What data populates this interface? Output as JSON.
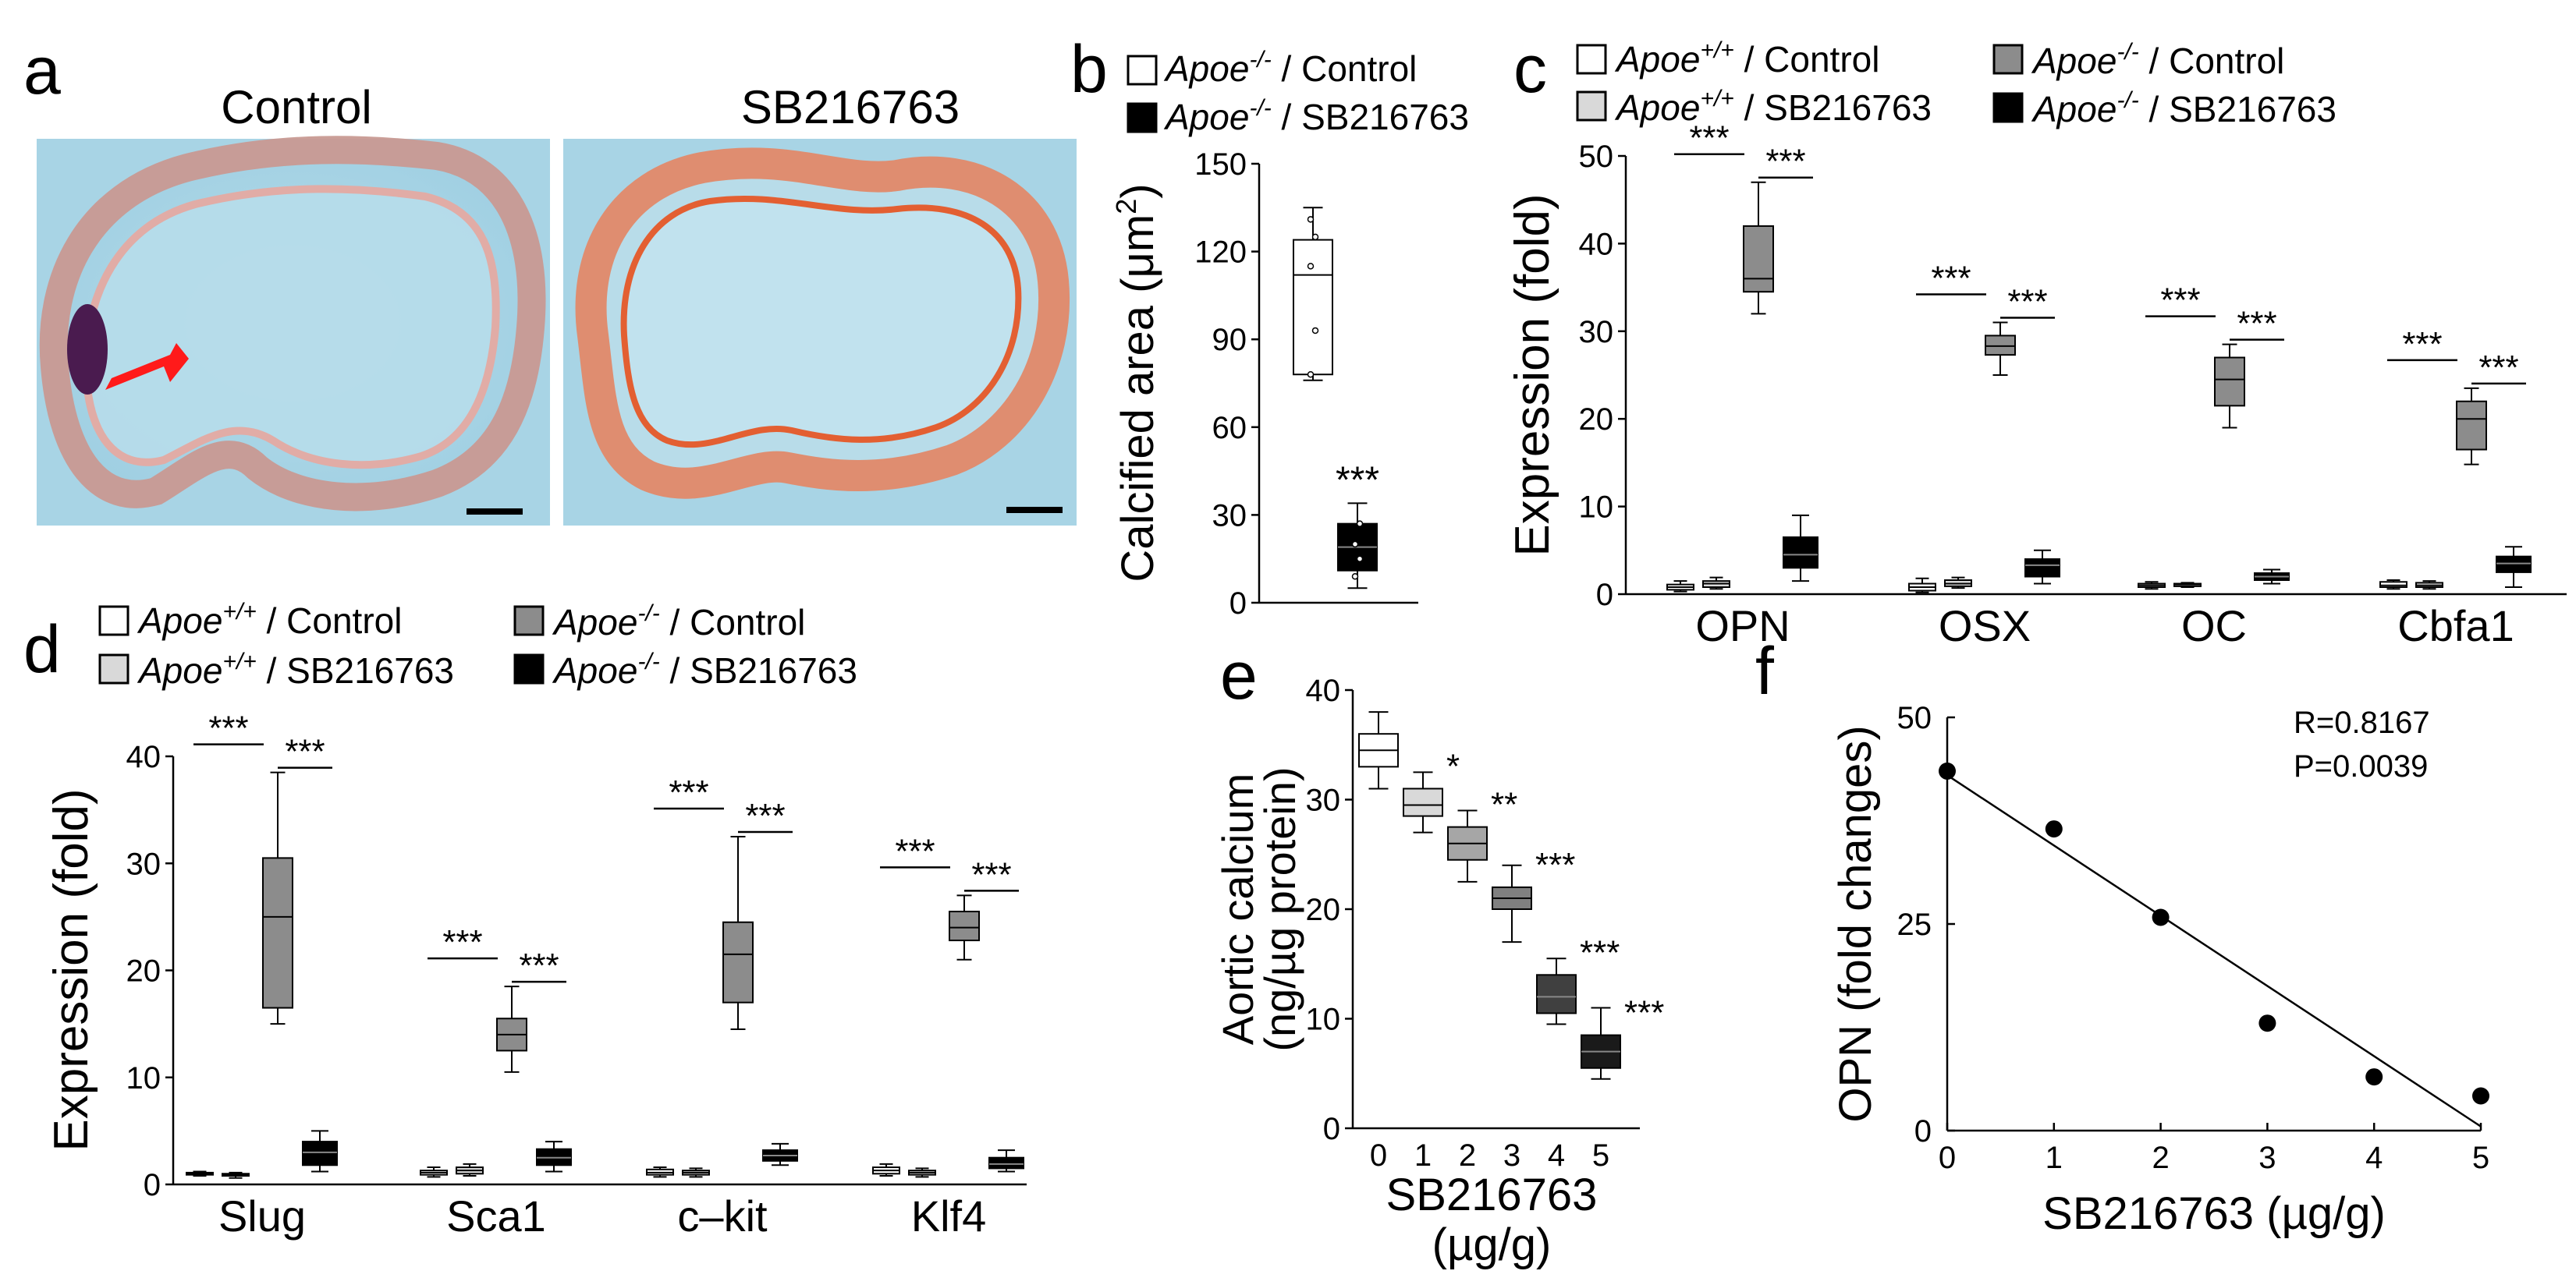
{
  "colors": {
    "white_box": "#ffffff",
    "light_box": "#d9d9d9",
    "gray_box": "#8c8c8c",
    "black_box": "#000000",
    "arrow": "#ff1a1a",
    "tissue_bg": "#9fd0e3"
  },
  "panel_a": {
    "letter": "a",
    "left_title": "Control",
    "right_title": "SB216763"
  },
  "legend_two": {
    "items": [
      {
        "gene": "Apoe",
        "sup": "-/-",
        "rest": " / Control",
        "color": "#ffffff"
      },
      {
        "gene": "Apoe",
        "sup": "-/-",
        "rest": " / SB216763",
        "color": "#000000"
      }
    ]
  },
  "legend_four": {
    "items": [
      {
        "gene": "Apoe",
        "sup": "+/+",
        "rest": " / Control",
        "color": "#ffffff"
      },
      {
        "gene": "Apoe",
        "sup": "+/+",
        "rest": " / SB216763",
        "color": "#d9d9d9"
      },
      {
        "gene": "Apoe",
        "sup": "-/-",
        "rest": " / Control",
        "color": "#8c8c8c"
      },
      {
        "gene": "Apoe",
        "sup": "-/-",
        "rest": " / SB216763",
        "color": "#000000"
      }
    ]
  },
  "chart_data": [
    {
      "panel": "b",
      "type": "box",
      "ylabel_main": "Calcified area (μm",
      "ylabel_sup": "2",
      "ylabel_end": ")",
      "ylim": [
        0,
        150
      ],
      "yticks": [
        0,
        30,
        60,
        90,
        120,
        150
      ],
      "series": [
        {
          "name": "Apoe-/- / Control",
          "color": "#ffffff",
          "min": 76,
          "q1": 78,
          "median": 112,
          "q3": 124,
          "max": 135,
          "points": [
            78,
            93,
            115,
            125,
            131
          ],
          "sig": ""
        },
        {
          "name": "Apoe-/- / SB216763",
          "color": "#000000",
          "min": 5,
          "q1": 11,
          "median": 19,
          "q3": 27,
          "max": 34,
          "points": [
            9,
            15,
            20,
            27
          ],
          "sig": "***"
        }
      ]
    },
    {
      "panel": "c",
      "type": "box",
      "ylabel": "Expression (fold)",
      "ylim": [
        0,
        50
      ],
      "yticks": [
        0,
        10,
        20,
        30,
        40,
        50
      ],
      "categories": [
        "OPN",
        "OSX",
        "OC",
        "Cbfa1"
      ],
      "series_names": [
        "Apoe+/+ / Control",
        "Apoe+/+ / SB216763",
        "Apoe-/- / Control",
        "Apoe-/- / SB216763"
      ],
      "boxes": [
        [
          {
            "min": 0.3,
            "q1": 0.5,
            "median": 0.8,
            "q3": 1.1,
            "max": 1.5
          },
          {
            "min": 0.6,
            "q1": 0.8,
            "median": 1.2,
            "q3": 1.5,
            "max": 1.9
          },
          {
            "min": 32,
            "q1": 34.5,
            "median": 36,
            "q3": 42,
            "max": 47
          },
          {
            "min": 1.5,
            "q1": 3,
            "median": 4.5,
            "q3": 6.5,
            "max": 9
          }
        ],
        [
          {
            "min": 0.2,
            "q1": 0.4,
            "median": 0.8,
            "q3": 1.2,
            "max": 1.8
          },
          {
            "min": 0.7,
            "q1": 0.9,
            "median": 1.2,
            "q3": 1.6,
            "max": 1.9
          },
          {
            "min": 25,
            "q1": 27.3,
            "median": 28.3,
            "q3": 29.5,
            "max": 31
          },
          {
            "min": 1.2,
            "q1": 2,
            "median": 3.3,
            "q3": 4,
            "max": 5
          }
        ],
        [
          {
            "min": 0.6,
            "q1": 0.8,
            "median": 1,
            "q3": 1.2,
            "max": 1.4
          },
          {
            "min": 0.8,
            "q1": 0.9,
            "median": 1.1,
            "q3": 1.2,
            "max": 1.3
          },
          {
            "min": 19,
            "q1": 21.5,
            "median": 24.5,
            "q3": 27,
            "max": 28.5
          },
          {
            "min": 1.2,
            "q1": 1.6,
            "median": 2,
            "q3": 2.4,
            "max": 2.8
          }
        ],
        [
          {
            "min": 0.6,
            "q1": 0.8,
            "median": 1,
            "q3": 1.4,
            "max": 1.6
          },
          {
            "min": 0.6,
            "q1": 0.8,
            "median": 1,
            "q3": 1.3,
            "max": 1.5
          },
          {
            "min": 14.8,
            "q1": 16.5,
            "median": 20,
            "q3": 22,
            "max": 23.5
          },
          {
            "min": 0.8,
            "q1": 2.5,
            "median": 3.5,
            "q3": 4.3,
            "max": 5.4
          }
        ]
      ],
      "significance": [
        {
          "category": "OPN",
          "left": "***",
          "right": "***"
        },
        {
          "category": "OSX",
          "left": "***",
          "right": "***"
        },
        {
          "category": "OC",
          "left": "***",
          "right": "***"
        },
        {
          "category": "Cbfa1",
          "left": "***",
          "right": "***"
        }
      ]
    },
    {
      "panel": "d",
      "type": "box",
      "ylabel": "Expression (fold)",
      "ylim": [
        0,
        40
      ],
      "yticks": [
        0,
        10,
        20,
        30,
        40
      ],
      "categories": [
        "Slug",
        "Sca1",
        "c–kit",
        "Klf4"
      ],
      "series_names": [
        "Apoe+/+ / Control",
        "Apoe+/+ / SB216763",
        "Apoe-/- / Control",
        "Apoe-/- / SB216763"
      ],
      "boxes": [
        [
          {
            "min": 0.8,
            "q1": 0.9,
            "median": 1,
            "q3": 1.1,
            "max": 1.2
          },
          {
            "min": 0.6,
            "q1": 0.8,
            "median": 0.9,
            "q3": 1,
            "max": 1.1
          },
          {
            "min": 15,
            "q1": 16.5,
            "median": 25,
            "q3": 30.5,
            "max": 38.5
          },
          {
            "min": 1.2,
            "q1": 1.8,
            "median": 3,
            "q3": 4,
            "max": 5
          }
        ],
        [
          {
            "min": 0.7,
            "q1": 0.9,
            "median": 1.1,
            "q3": 1.3,
            "max": 1.6
          },
          {
            "min": 0.8,
            "q1": 1,
            "median": 1.3,
            "q3": 1.6,
            "max": 1.9
          },
          {
            "min": 10.5,
            "q1": 12.5,
            "median": 14,
            "q3": 15.5,
            "max": 18.5
          },
          {
            "min": 1.2,
            "q1": 1.8,
            "median": 2.5,
            "q3": 3.3,
            "max": 4
          }
        ],
        [
          {
            "min": 0.7,
            "q1": 0.9,
            "median": 1.1,
            "q3": 1.4,
            "max": 1.6
          },
          {
            "min": 0.7,
            "q1": 0.9,
            "median": 1.1,
            "q3": 1.3,
            "max": 1.5
          },
          {
            "min": 14.5,
            "q1": 17,
            "median": 21.5,
            "q3": 24.5,
            "max": 32.5
          },
          {
            "min": 1.8,
            "q1": 2.2,
            "median": 2.7,
            "q3": 3.2,
            "max": 3.8
          }
        ],
        [
          {
            "min": 0.8,
            "q1": 1,
            "median": 1.3,
            "q3": 1.6,
            "max": 1.9
          },
          {
            "min": 0.7,
            "q1": 0.9,
            "median": 1.1,
            "q3": 1.3,
            "max": 1.5
          },
          {
            "min": 21,
            "q1": 22.8,
            "median": 24,
            "q3": 25.5,
            "max": 27
          },
          {
            "min": 1.2,
            "q1": 1.5,
            "median": 1.9,
            "q3": 2.5,
            "max": 3.2
          }
        ]
      ],
      "significance": [
        {
          "category": "Slug",
          "left": "***",
          "right": "***"
        },
        {
          "category": "Sca1",
          "left": "***",
          "right": "***"
        },
        {
          "category": "c–kit",
          "left": "***",
          "right": "***"
        },
        {
          "category": "Klf4",
          "left": "***",
          "right": "***"
        }
      ]
    },
    {
      "panel": "e",
      "type": "box",
      "ylabel_line1": "Aortic calcium",
      "ylabel_line2": "(ng/µg protein)",
      "xlabel_line1": "SB216763",
      "xlabel_line2": "(µg/g)",
      "ylim": [
        0,
        40
      ],
      "yticks": [
        0,
        10,
        20,
        30,
        40
      ],
      "categories": [
        "0",
        "1",
        "2",
        "3",
        "4",
        "5"
      ],
      "boxes": [
        {
          "color": "#ffffff",
          "min": 31,
          "q1": 33,
          "median": 34.5,
          "q3": 36,
          "max": 38,
          "sig": ""
        },
        {
          "color": "#d9d9d9",
          "min": 27,
          "q1": 28.5,
          "median": 29.5,
          "q3": 31,
          "max": 32.5,
          "sig": "*"
        },
        {
          "color": "#a6a6a6",
          "min": 22.5,
          "q1": 24.5,
          "median": 26,
          "q3": 27.5,
          "max": 29,
          "sig": "**"
        },
        {
          "color": "#808080",
          "min": 17,
          "q1": 20,
          "median": 21,
          "q3": 22,
          "max": 24,
          "sig": "***"
        },
        {
          "color": "#404040",
          "min": 9.5,
          "q1": 10.5,
          "median": 12,
          "q3": 14,
          "max": 15.5,
          "sig": "***"
        },
        {
          "color": "#1a1a1a",
          "min": 4.5,
          "q1": 5.5,
          "median": 7,
          "q3": 8.5,
          "max": 11,
          "sig": "***"
        }
      ]
    },
    {
      "panel": "f",
      "type": "scatter",
      "ylabel": "OPN (fold changes)",
      "xlabel": "SB216763 (µg/g)",
      "xlim": [
        0,
        5
      ],
      "ylim": [
        0,
        50
      ],
      "xticks": [
        0,
        1,
        2,
        3,
        4,
        5
      ],
      "yticks": [
        0,
        25,
        50
      ],
      "x": [
        0,
        1,
        2,
        3,
        4,
        5
      ],
      "y": [
        43.5,
        36.5,
        25.8,
        13,
        6.5,
        4.2
      ],
      "fit": {
        "x0": 0,
        "y0": 43,
        "x1": 5,
        "y1": 0.5
      },
      "annotation_r": "R=0.8167",
      "annotation_p": "P=0.0039"
    }
  ]
}
